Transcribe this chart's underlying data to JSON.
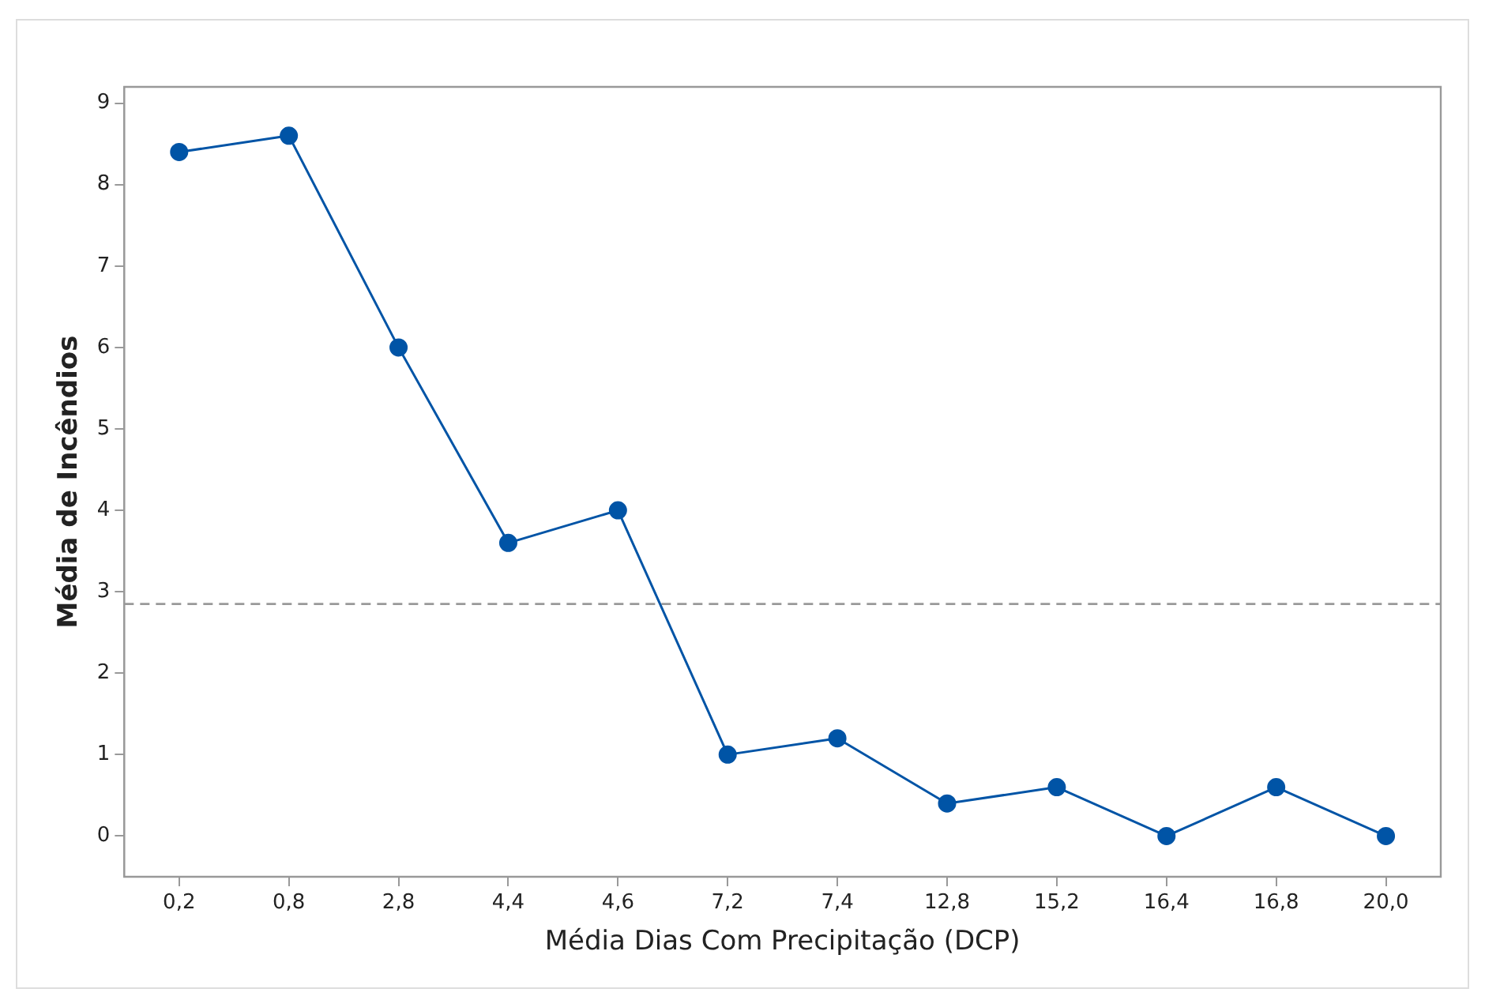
{
  "chart_data": {
    "type": "line",
    "xlabel": "Média Dias Com Precipitação (DCP)",
    "ylabel": "Média de Incêndios",
    "categories": [
      "0,2",
      "0,8",
      "2,8",
      "4,4",
      "4,6",
      "7,2",
      "7,4",
      "12,8",
      "15,2",
      "16,4",
      "16,8",
      "20,0"
    ],
    "series": [
      {
        "color": "#0054a6",
        "values": [
          8.4,
          8.6,
          6.0,
          3.6,
          4.0,
          1.0,
          1.2,
          0.4,
          0.6,
          0.0,
          0.6,
          0.0
        ]
      }
    ],
    "ylim": [
      -0.5,
      9.2
    ],
    "yticks": [
      0,
      1,
      2,
      3,
      4,
      5,
      6,
      7,
      8,
      9
    ],
    "ref_lines": [
      {
        "axis": "y",
        "value": 2.85,
        "color": "#999999",
        "line_style": "dashed"
      }
    ],
    "grid": false,
    "legend": false,
    "marker": "circle",
    "line_style": "solid"
  }
}
